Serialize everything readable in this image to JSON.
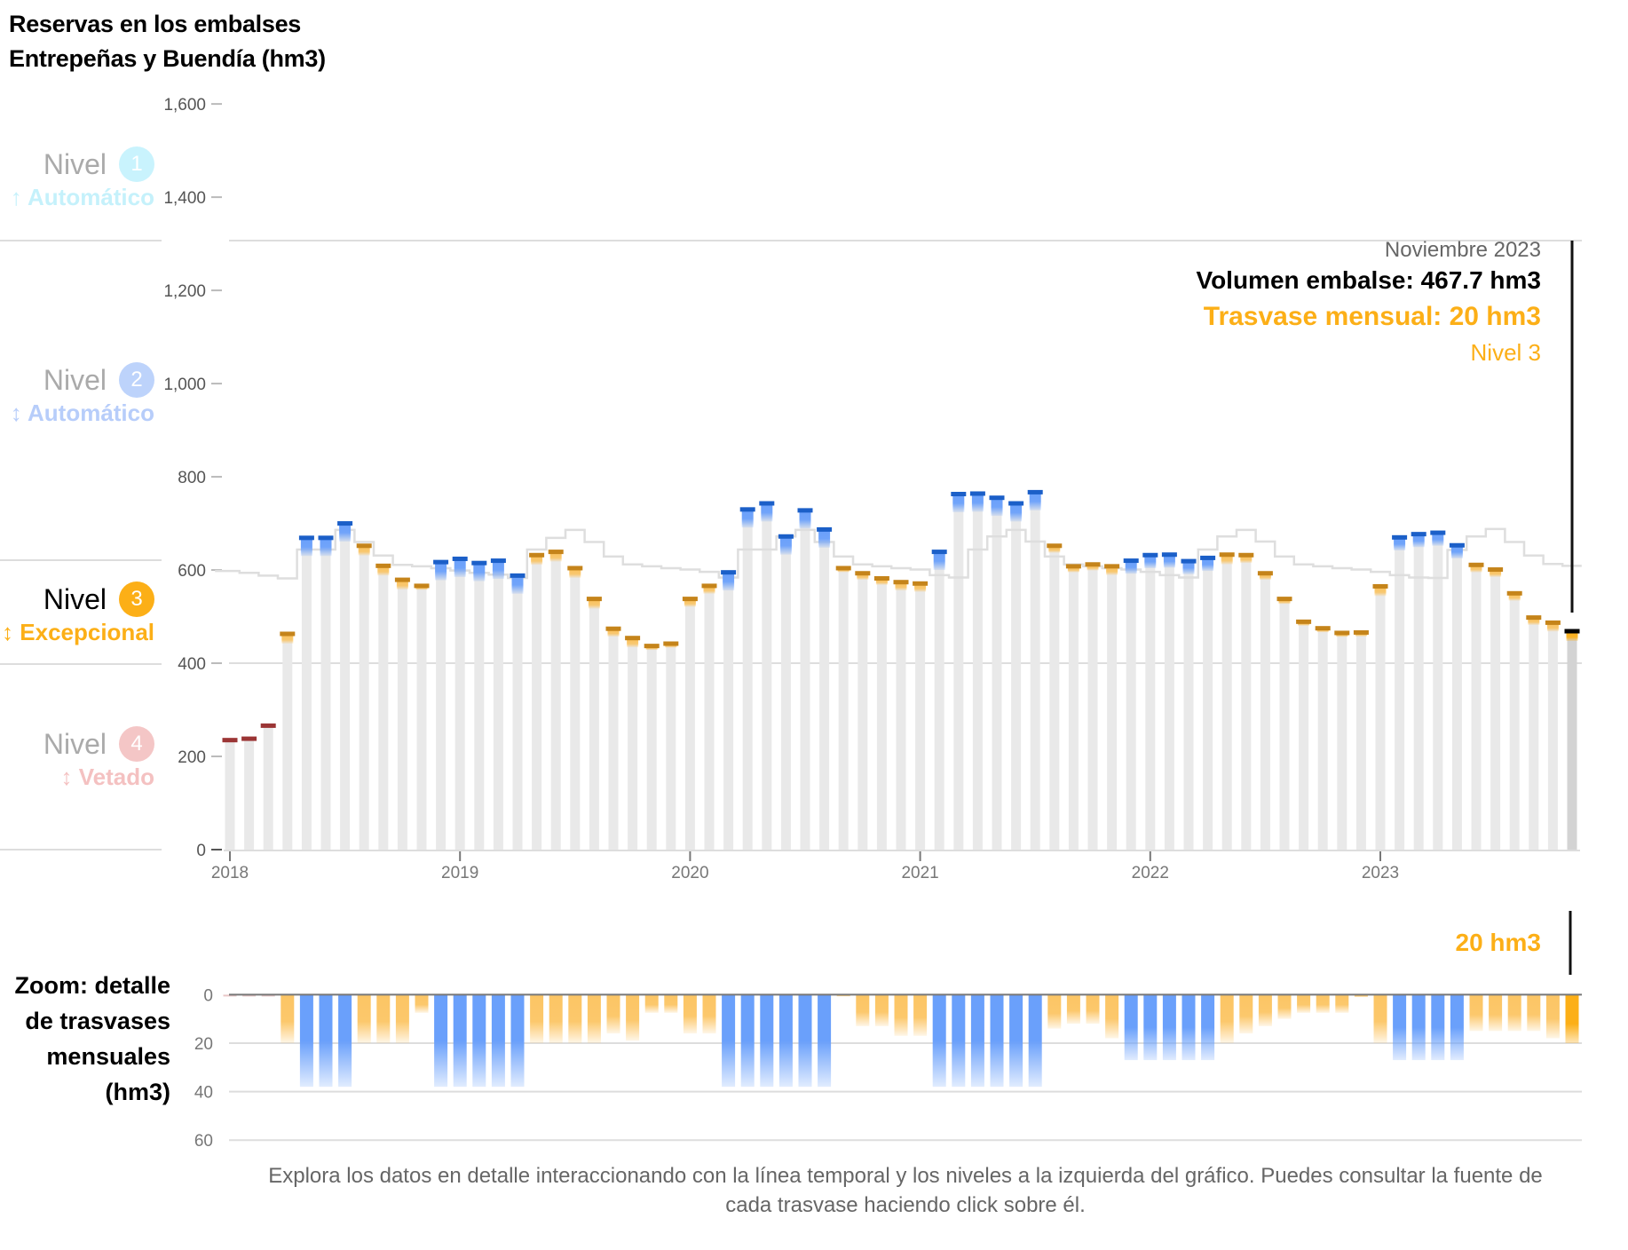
{
  "title": {
    "line1": "Reservas en los embalses",
    "line2": "Entrepeñas y Buendía (hm3)"
  },
  "levels": [
    {
      "name": "Nivel",
      "number": "1",
      "arrow": "↑",
      "label": "Automático",
      "color": "#c9f3fd",
      "text_color": "#c5f1fb",
      "active": false
    },
    {
      "name": "Nivel",
      "number": "2",
      "arrow": "↕",
      "label": "Automático",
      "color": "#bdd3fb",
      "text_color": "#b7cdfa",
      "active": false
    },
    {
      "name": "Nivel",
      "number": "3",
      "arrow": "↕",
      "label": "Excepcional",
      "color": "#fcaf17",
      "text_color": "#fcaf17",
      "active": true
    },
    {
      "name": "Nivel",
      "number": "4",
      "arrow": "↕",
      "label": "Vetado",
      "color": "#f4c6c6",
      "text_color": "#f4c1c1",
      "active": false
    }
  ],
  "annotation": {
    "date": "Noviembre 2023",
    "volume": "Volumen embalse: 467.7 hm3",
    "transfer": "Trasvase mensual: 20 hm3",
    "level": "Nivel 3"
  },
  "lower": {
    "label_lines": [
      "Zoom: detalle",
      "de trasvases",
      "mensuales",
      "(hm3)"
    ],
    "current_value": "20 hm3"
  },
  "footer": "Explora los datos en detalle interaccionando con la línea temporal y los niveles a la izquierda del gráfico. Puedes consultar la fuente de cada trasvase haciendo click sobre él.",
  "colors": {
    "level1_2": "#1b5fc8",
    "level1_2_fill": "#6aa0fb",
    "level3": "#c5841a",
    "level3_fill": "#fcbf52",
    "level4": "#9b3535",
    "bar": "#e9e9e9",
    "selected_bar": "#d3d3d3",
    "threshold": "#dedede"
  },
  "chart_data": [
    {
      "type": "bar",
      "title": "Reservas en los embalses Entrepeñas y Buendía (hm3)",
      "xlabel": "",
      "ylabel": "hm3",
      "ylim": [
        0,
        1600
      ],
      "yticks": [
        "0",
        "200",
        "400",
        "600",
        "800",
        "1,000",
        "1,200",
        "1,400",
        "1,600"
      ],
      "ytick_values": [
        0,
        200,
        400,
        600,
        800,
        1000,
        1200,
        1400,
        1600
      ],
      "xticks": [
        "2018",
        "2019",
        "2020",
        "2021",
        "2022",
        "2023"
      ],
      "xtick_index": [
        0,
        12,
        24,
        36,
        48,
        60
      ],
      "start": "2018-01",
      "end": "2023-11",
      "grid": "horizontal lines at level thresholds",
      "level_band_boundaries": [
        1300,
        645,
        400
      ],
      "selected_index": 70,
      "series": [
        {
          "name": "Volumen embalse",
          "values": [
            234,
            237,
            265,
            462,
            668,
            668,
            699,
            651,
            608,
            578,
            565,
            616,
            623,
            614,
            619,
            587,
            631,
            638,
            603,
            537,
            473,
            453,
            436,
            441,
            537,
            565,
            594,
            729,
            742,
            671,
            727,
            686,
            603,
            592,
            581,
            573,
            570,
            638,
            762,
            763,
            754,
            742,
            766,
            651,
            607,
            611,
            607,
            619,
            631,
            632,
            618,
            625,
            632,
            631,
            592,
            537,
            488,
            474,
            464,
            465,
            564,
            669,
            676,
            679,
            652,
            610,
            600,
            549,
            497,
            486,
            467.7
          ]
        },
        {
          "name": "Nivel",
          "values": [
            4,
            4,
            4,
            3,
            2,
            2,
            2,
            3,
            3,
            3,
            3,
            2,
            2,
            2,
            2,
            2,
            3,
            3,
            3,
            3,
            3,
            3,
            3,
            3,
            3,
            3,
            2,
            2,
            2,
            2,
            2,
            2,
            3,
            3,
            3,
            3,
            3,
            2,
            2,
            2,
            2,
            2,
            2,
            3,
            3,
            3,
            3,
            2,
            2,
            2,
            2,
            2,
            3,
            3,
            3,
            3,
            3,
            3,
            3,
            3,
            3,
            2,
            2,
            2,
            2,
            3,
            3,
            3,
            3,
            3,
            3
          ]
        },
        {
          "name": "Umbral nivel 2/3",
          "type": "step-line",
          "values": [
            598,
            594,
            588,
            582,
            644,
            644,
            686,
            660,
            631,
            611,
            608,
            604,
            599,
            594,
            590,
            583,
            644,
            669,
            686,
            660,
            629,
            612,
            608,
            604,
            601,
            596,
            584,
            644,
            644,
            672,
            686,
            660,
            629,
            612,
            608,
            604,
            601,
            589,
            584,
            644,
            672,
            686,
            661,
            629,
            612,
            608,
            604,
            601,
            596,
            589,
            584,
            644,
            672,
            686,
            661,
            629,
            612,
            608,
            604,
            601,
            596,
            589,
            584,
            583,
            643,
            672,
            688,
            660,
            631,
            613,
            609
          ]
        }
      ]
    },
    {
      "type": "bar",
      "title": "Zoom: detalle de trasvases mensuales (hm3)",
      "ylabel": "hm3",
      "ylim": [
        0,
        60
      ],
      "yticks": [
        "0",
        "20",
        "40",
        "60"
      ],
      "ytick_values": [
        0,
        20,
        40,
        60
      ],
      "orientation": "downward",
      "series": [
        {
          "name": "Trasvase mensual",
          "values": [
            0,
            0,
            0,
            20,
            38,
            38,
            38,
            20,
            20,
            20,
            7.5,
            38,
            38,
            38,
            38,
            38,
            20,
            20,
            20,
            20,
            16,
            19,
            7.5,
            7.5,
            16,
            16,
            38,
            38,
            38,
            38,
            38,
            38,
            0.5,
            13,
            13,
            17,
            17,
            38,
            38,
            38,
            38,
            38,
            38,
            14,
            12,
            12,
            18,
            27,
            27,
            27,
            27,
            27,
            20,
            16,
            13,
            10,
            7.5,
            7.5,
            7.5,
            1,
            20,
            27,
            27,
            27,
            27,
            15,
            15,
            15,
            15,
            18,
            20
          ]
        }
      ]
    }
  ]
}
